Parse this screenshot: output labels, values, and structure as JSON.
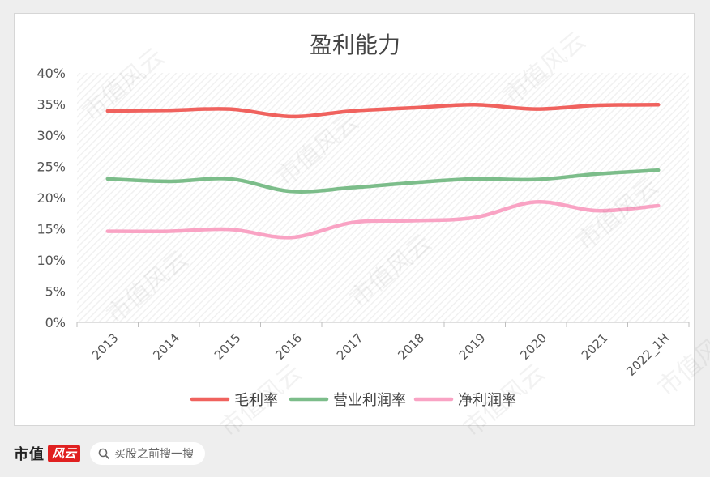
{
  "chart_data": {
    "type": "line",
    "title": "盈利能力",
    "categories": [
      "2013",
      "2014",
      "2015",
      "2016",
      "2017",
      "2018",
      "2019",
      "2020",
      "2021",
      "2022_1H"
    ],
    "ylim": [
      0,
      40
    ],
    "yticks": [
      0,
      5,
      10,
      15,
      20,
      25,
      30,
      35,
      40
    ],
    "ytick_suffix": "%",
    "legend_position": "bottom",
    "grid": true,
    "series": [
      {
        "name": "毛利率",
        "color": "#f0625e",
        "values": [
          33.9,
          34.0,
          34.2,
          33.0,
          33.9,
          34.4,
          34.9,
          34.2,
          34.8,
          34.9
        ]
      },
      {
        "name": "营业利润率",
        "color": "#7cbd8a",
        "values": [
          23.0,
          22.6,
          23.0,
          21.0,
          21.6,
          22.4,
          23.0,
          22.9,
          23.8,
          24.4
        ]
      },
      {
        "name": "净利润率",
        "color": "#f9a3c4",
        "values": [
          14.6,
          14.6,
          14.9,
          13.6,
          16.0,
          16.3,
          16.8,
          19.3,
          17.9,
          18.7
        ]
      }
    ]
  },
  "footer": {
    "brand": "市值",
    "brand_seal": "风云",
    "search_placeholder": "买股之前搜一搜"
  },
  "watermark": "市值风云"
}
